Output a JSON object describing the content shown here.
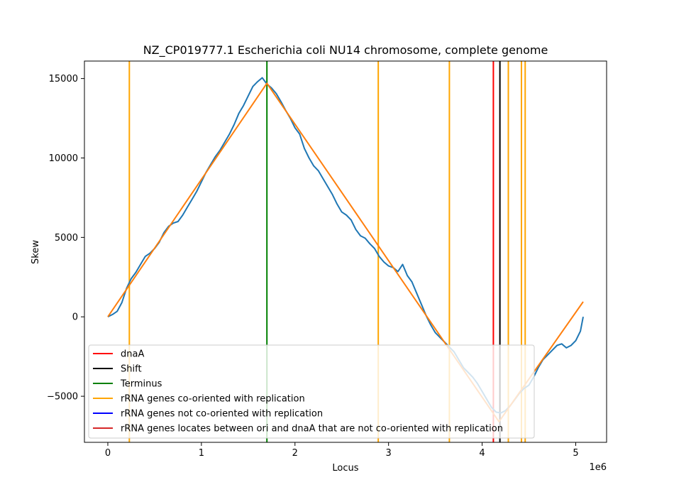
{
  "chart_data": {
    "type": "line",
    "title": "NZ_CP019777.1 Escherichia coli NU14 chromosome, complete genome",
    "xlabel": "Locus",
    "ylabel": "Skew",
    "x_offset_label": "1e6",
    "xlim": [
      -250000,
      5330000
    ],
    "ylim": [
      -7900,
      16100
    ],
    "x_ticks": [
      0,
      1000000,
      2000000,
      3000000,
      4000000,
      5000000
    ],
    "x_tick_labels": [
      "0",
      "1",
      "2",
      "3",
      "4",
      "5"
    ],
    "y_ticks": [
      -5000,
      0,
      5000,
      10000,
      15000
    ],
    "y_tick_labels": [
      "−5000",
      "0",
      "5000",
      "10000",
      "15000"
    ],
    "grid": false,
    "legend_position": "lower-left",
    "series": [
      {
        "color": "#1f77b4",
        "points": [
          [
            0,
            0
          ],
          [
            50000,
            150
          ],
          [
            100000,
            350
          ],
          [
            150000,
            900
          ],
          [
            200000,
            1800
          ],
          [
            250000,
            2400
          ],
          [
            300000,
            2800
          ],
          [
            350000,
            3300
          ],
          [
            400000,
            3800
          ],
          [
            450000,
            4000
          ],
          [
            500000,
            4300
          ],
          [
            550000,
            4700
          ],
          [
            600000,
            5300
          ],
          [
            650000,
            5700
          ],
          [
            700000,
            5900
          ],
          [
            750000,
            6000
          ],
          [
            800000,
            6400
          ],
          [
            850000,
            6900
          ],
          [
            900000,
            7400
          ],
          [
            950000,
            7900
          ],
          [
            1000000,
            8500
          ],
          [
            1050000,
            9100
          ],
          [
            1100000,
            9600
          ],
          [
            1150000,
            10100
          ],
          [
            1200000,
            10500
          ],
          [
            1250000,
            11000
          ],
          [
            1300000,
            11500
          ],
          [
            1350000,
            12100
          ],
          [
            1400000,
            12800
          ],
          [
            1450000,
            13300
          ],
          [
            1500000,
            13900
          ],
          [
            1550000,
            14500
          ],
          [
            1600000,
            14800
          ],
          [
            1650000,
            15050
          ],
          [
            1700000,
            14650
          ],
          [
            1750000,
            14400
          ],
          [
            1800000,
            14050
          ],
          [
            1850000,
            13550
          ],
          [
            1900000,
            13000
          ],
          [
            1950000,
            12500
          ],
          [
            2000000,
            11900
          ],
          [
            2050000,
            11500
          ],
          [
            2100000,
            10600
          ],
          [
            2150000,
            10000
          ],
          [
            2200000,
            9500
          ],
          [
            2250000,
            9200
          ],
          [
            2300000,
            8700
          ],
          [
            2350000,
            8200
          ],
          [
            2400000,
            7700
          ],
          [
            2450000,
            7100
          ],
          [
            2500000,
            6600
          ],
          [
            2550000,
            6400
          ],
          [
            2600000,
            6100
          ],
          [
            2650000,
            5500
          ],
          [
            2700000,
            5100
          ],
          [
            2750000,
            4950
          ],
          [
            2800000,
            4600
          ],
          [
            2850000,
            4300
          ],
          [
            2900000,
            3800
          ],
          [
            2950000,
            3450
          ],
          [
            3000000,
            3200
          ],
          [
            3050000,
            3100
          ],
          [
            3100000,
            2850
          ],
          [
            3150000,
            3300
          ],
          [
            3200000,
            2600
          ],
          [
            3250000,
            2200
          ],
          [
            3300000,
            1500
          ],
          [
            3350000,
            800
          ],
          [
            3400000,
            100
          ],
          [
            3450000,
            -500
          ],
          [
            3500000,
            -1000
          ],
          [
            3550000,
            -1300
          ],
          [
            3600000,
            -1600
          ],
          [
            3650000,
            -1900
          ],
          [
            3700000,
            -2200
          ],
          [
            3750000,
            -2700
          ],
          [
            3800000,
            -3200
          ],
          [
            3850000,
            -3500
          ],
          [
            3900000,
            -3800
          ],
          [
            3950000,
            -4200
          ],
          [
            4000000,
            -4700
          ],
          [
            4050000,
            -5200
          ],
          [
            4100000,
            -5700
          ],
          [
            4150000,
            -6000
          ],
          [
            4200000,
            -6050
          ],
          [
            4250000,
            -5900
          ],
          [
            4300000,
            -5600
          ],
          [
            4350000,
            -5200
          ],
          [
            4400000,
            -4800
          ],
          [
            4450000,
            -4500
          ],
          [
            4500000,
            -4300
          ],
          [
            4550000,
            -3800
          ],
          [
            4600000,
            -3200
          ],
          [
            4650000,
            -2700
          ],
          [
            4700000,
            -2400
          ],
          [
            4750000,
            -2100
          ],
          [
            4800000,
            -1800
          ],
          [
            4850000,
            -1700
          ],
          [
            4900000,
            -1950
          ],
          [
            4950000,
            -1800
          ],
          [
            5000000,
            -1500
          ],
          [
            5050000,
            -900
          ],
          [
            5080000,
            0
          ]
        ]
      },
      {
        "color": "#ff7f0e",
        "points": [
          [
            0,
            0
          ],
          [
            1700000,
            14700
          ],
          [
            4180000,
            -6600
          ],
          [
            5080000,
            950
          ]
        ]
      }
    ],
    "vertical_lines": [
      {
        "x": 230000,
        "color": "#ffa500",
        "kind": "rRNA genes co-oriented with replication"
      },
      {
        "x": 2890000,
        "color": "#ffa500",
        "kind": "rRNA genes co-oriented with replication"
      },
      {
        "x": 3650000,
        "color": "#ffa500",
        "kind": "rRNA genes co-oriented with replication"
      },
      {
        "x": 4280000,
        "color": "#ffa500",
        "kind": "rRNA genes co-oriented with replication"
      },
      {
        "x": 4420000,
        "color": "#ffa500",
        "kind": "rRNA genes co-oriented with replication"
      },
      {
        "x": 4460000,
        "color": "#ffa500",
        "kind": "rRNA genes co-oriented with replication"
      },
      {
        "x": 1700000,
        "color": "#008000",
        "kind": "Terminus"
      },
      {
        "x": 4120000,
        "color": "#ff0000",
        "kind": "dnaA"
      },
      {
        "x": 4190000,
        "color": "#000000",
        "kind": "Shift"
      }
    ],
    "legend": [
      {
        "label": "dnaA",
        "color": "#ff0000"
      },
      {
        "label": "Shift",
        "color": "#000000"
      },
      {
        "label": "Terminus",
        "color": "#008000"
      },
      {
        "label": "rRNA genes co-oriented with replication",
        "color": "#ffa500"
      },
      {
        "label": "rRNA genes not co-oriented with replication",
        "color": "#0000ff"
      },
      {
        "label": "rRNA genes locates between ori and dnaA that are not co-oriented with replication",
        "color": "#d62728"
      }
    ]
  }
}
